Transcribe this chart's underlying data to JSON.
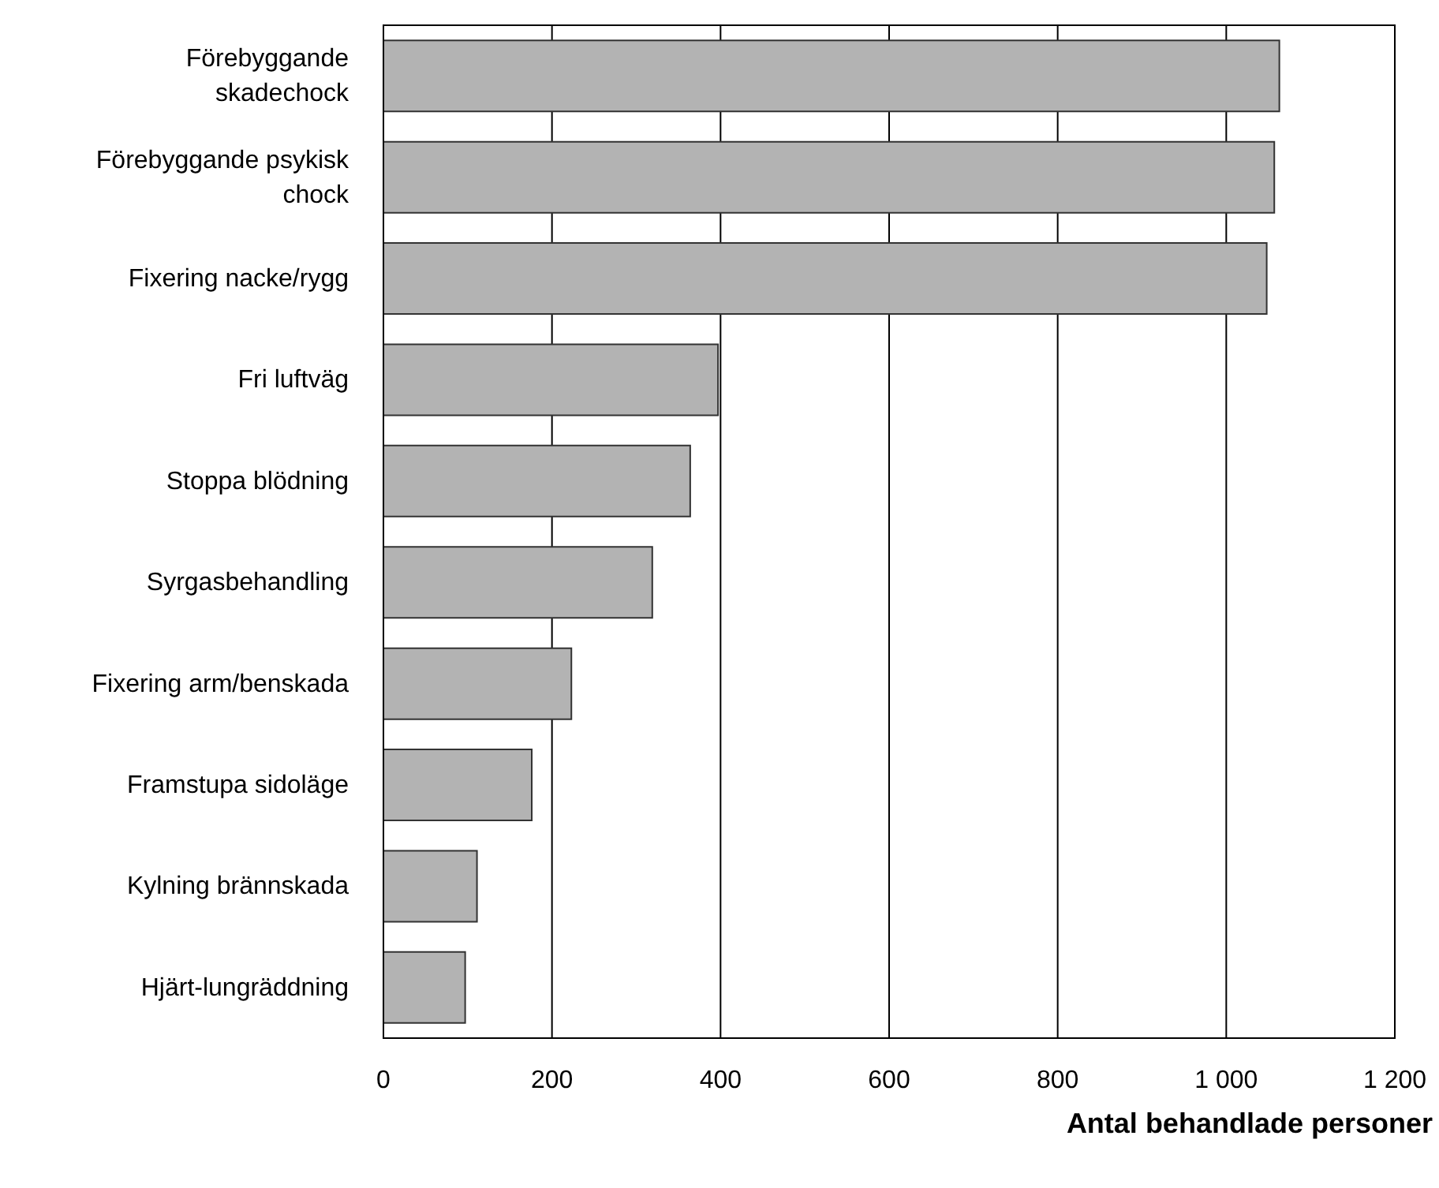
{
  "chart_data": {
    "type": "bar",
    "orientation": "horizontal",
    "xlabel": "Antal behandlade personer",
    "categories": [
      "Förebyggande skadechock",
      "Förebyggande psykisk chock",
      "Fixering nacke/rygg",
      "Fri luftväg",
      "Stoppa blödning",
      "Syrgasbehandling",
      "Fixering arm/benskada",
      "Framstupa sidoläge",
      "Kylning brännskada",
      "Hjärt-lungräddning"
    ],
    "values": [
      1063,
      1057,
      1048,
      397,
      364,
      319,
      223,
      176,
      111,
      97
    ],
    "color": "#b3b3b3",
    "xlim": [
      0,
      1200
    ],
    "xticks": [
      0,
      200,
      400,
      600,
      800,
      {
        "value": 1000,
        "label": "1 000"
      },
      {
        "value": 1200,
        "label": "1 200"
      }
    ],
    "grid": "x"
  }
}
